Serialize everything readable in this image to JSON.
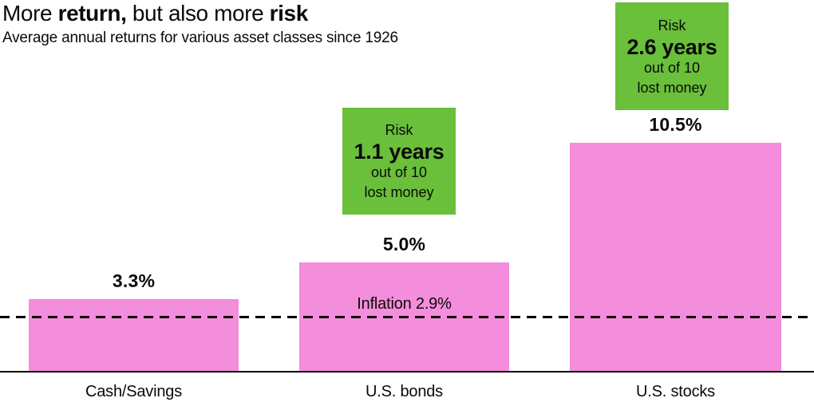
{
  "header": {
    "title_parts": [
      {
        "text": "More ",
        "bold": false
      },
      {
        "text": "return,",
        "bold": true
      },
      {
        "text": " but also more ",
        "bold": false
      },
      {
        "text": "risk",
        "bold": true
      }
    ],
    "subtitle": "Average annual returns for various asset classes since 1926"
  },
  "colors": {
    "bar": "#F48DDB",
    "risk_box": "#6ABF3B",
    "axis": "#000000",
    "text": "#0a0a0a"
  },
  "chart_data": {
    "type": "bar",
    "title": "More return, but also more risk",
    "subtitle": "Average annual returns for various asset classes since 1926",
    "categories": [
      "Cash/Savings",
      "U.S. bonds",
      "U.S. stocks"
    ],
    "values": [
      3.3,
      5.0,
      10.5
    ],
    "value_labels": [
      "3.3%",
      "5.0%",
      "10.5%"
    ],
    "unit": "percent average annual return",
    "ylim": [
      0,
      11
    ],
    "grid": false,
    "legend": false,
    "reference_line": {
      "label": "Inflation 2.9%",
      "value": 2.9,
      "style": "dashed"
    },
    "risk_annotations": [
      {
        "category": "U.S. bonds",
        "label": "Risk",
        "value_text": "1.1 years",
        "detail": [
          "out of 10",
          "lost money"
        ]
      },
      {
        "category": "U.S. stocks",
        "label": "Risk",
        "value_text": "2.6 years",
        "detail": [
          "out of 10",
          "lost money"
        ]
      }
    ]
  }
}
